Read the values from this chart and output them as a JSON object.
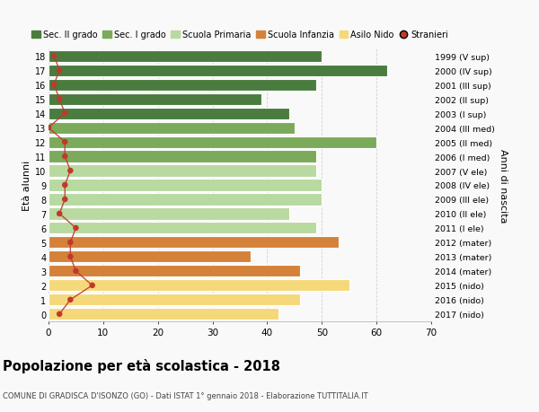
{
  "ages": [
    18,
    17,
    16,
    15,
    14,
    13,
    12,
    11,
    10,
    9,
    8,
    7,
    6,
    5,
    4,
    3,
    2,
    1,
    0
  ],
  "right_labels": [
    "1999 (V sup)",
    "2000 (IV sup)",
    "2001 (III sup)",
    "2002 (II sup)",
    "2003 (I sup)",
    "2004 (III med)",
    "2005 (II med)",
    "2006 (I med)",
    "2007 (V ele)",
    "2008 (IV ele)",
    "2009 (III ele)",
    "2010 (II ele)",
    "2011 (I ele)",
    "2012 (mater)",
    "2013 (mater)",
    "2014 (mater)",
    "2015 (nido)",
    "2016 (nido)",
    "2017 (nido)"
  ],
  "bar_values": [
    50,
    62,
    49,
    39,
    44,
    45,
    60,
    49,
    49,
    50,
    50,
    44,
    49,
    53,
    37,
    46,
    55,
    46,
    42
  ],
  "stranieri": [
    1,
    2,
    1,
    2,
    3,
    0,
    3,
    3,
    4,
    3,
    3,
    2,
    5,
    4,
    4,
    5,
    8,
    4,
    2
  ],
  "bar_colors": [
    "#4a7c3f",
    "#4a7c3f",
    "#4a7c3f",
    "#4a7c3f",
    "#4a7c3f",
    "#7aaa5a",
    "#7aaa5a",
    "#7aaa5a",
    "#b8d9a0",
    "#b8d9a0",
    "#b8d9a0",
    "#b8d9a0",
    "#b8d9a0",
    "#d4823a",
    "#d4823a",
    "#d4823a",
    "#f5d87a",
    "#f5d87a",
    "#f5d87a"
  ],
  "legend_labels": [
    "Sec. II grado",
    "Sec. I grado",
    "Scuola Primaria",
    "Scuola Infanzia",
    "Asilo Nido",
    "Stranieri"
  ],
  "legend_colors": [
    "#4a7c3f",
    "#7aaa5a",
    "#b8d9a0",
    "#d4823a",
    "#f5d87a",
    "#c0392b"
  ],
  "stranieri_color": "#c0392b",
  "ylabel_left": "Età alunni",
  "ylabel_right": "Anni di nascita",
  "title": "Popolazione per età scolastica - 2018",
  "subtitle": "COMUNE DI GRADISCA D'ISONZO (GO) - Dati ISTAT 1° gennaio 2018 - Elaborazione TUTTITALIA.IT",
  "xlim": [
    0,
    70
  ],
  "background_color": "#f9f9f9",
  "grid_color": "#cccccc"
}
